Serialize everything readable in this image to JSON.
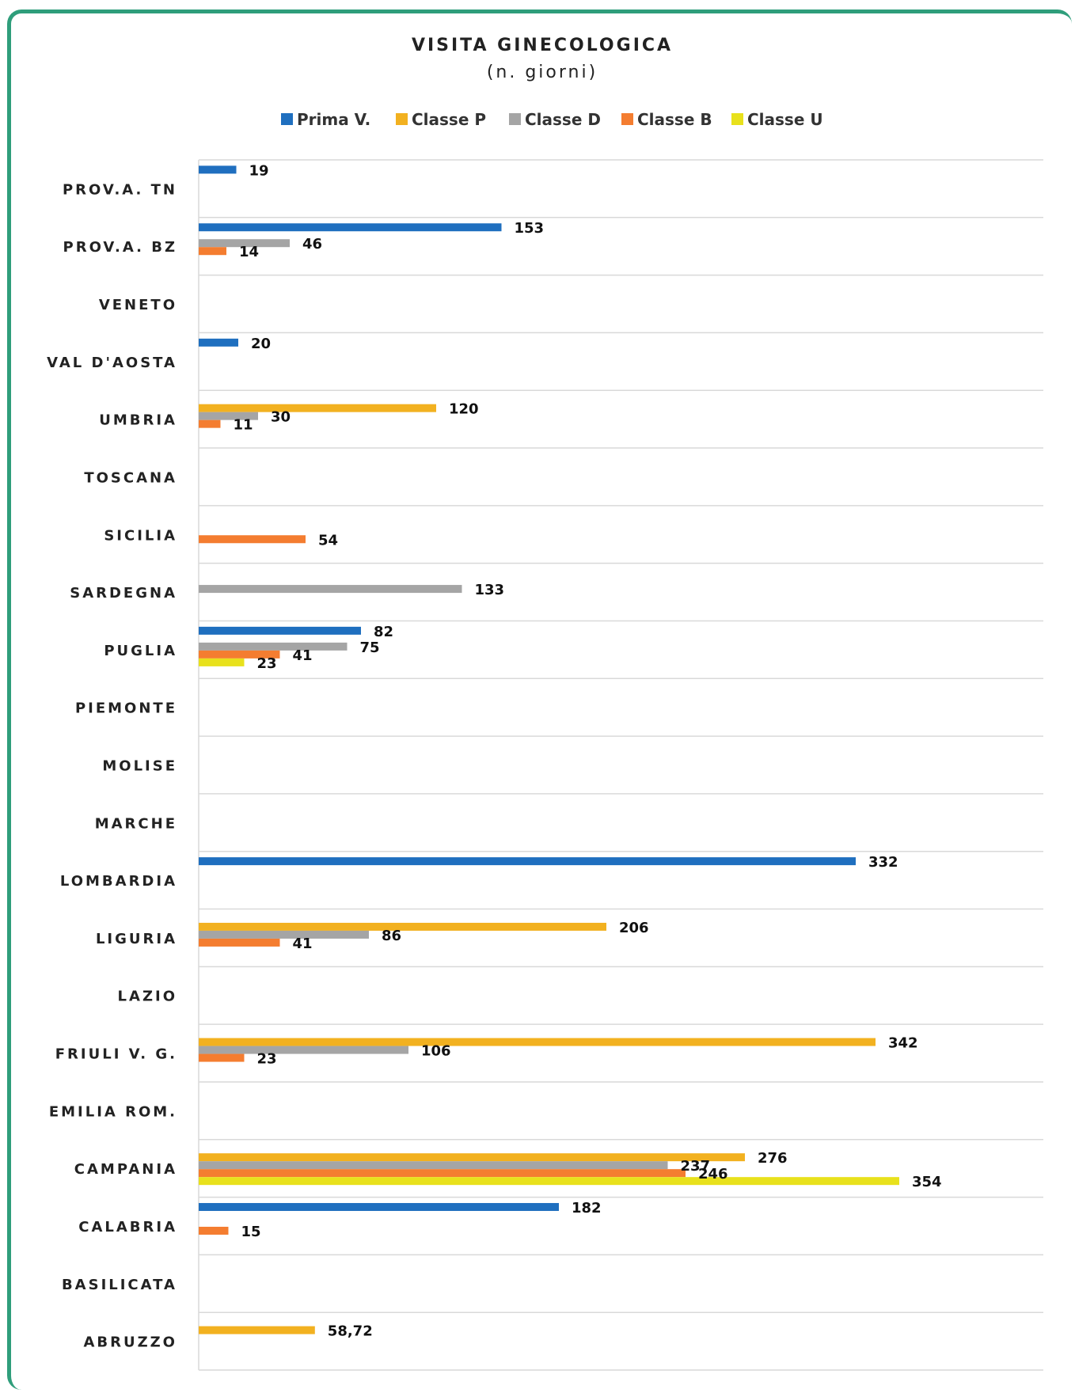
{
  "chart_data": {
    "type": "bar",
    "orientation": "horizontal",
    "title": "VISITA GINECOLOGICA",
    "subtitle": "(n. giorni)",
    "legend_position": "top",
    "categories": [
      "PROV.A. TN",
      "PROV.A. BZ",
      "VENETO",
      "VAL D'AOSTA",
      "UMBRIA",
      "TOSCANA",
      "SICILIA",
      "SARDEGNA",
      "PUGLIA",
      "PIEMONTE",
      "MOLISE",
      "MARCHE",
      "LOMBARDIA",
      "LIGURIA",
      "LAZIO",
      "FRIULI V. G.",
      "EMILIA ROM.",
      "CAMPANIA",
      "CALABRIA",
      "BASILICATA",
      "ABRUZZO"
    ],
    "series": [
      {
        "name": "Prima V.",
        "color": "#1f6fbf",
        "values": [
          19,
          153,
          null,
          20,
          null,
          null,
          null,
          null,
          82,
          null,
          null,
          null,
          332,
          null,
          null,
          null,
          null,
          null,
          182,
          null,
          null
        ],
        "labels": [
          "19",
          "153",
          "",
          "20",
          "",
          "",
          "",
          "",
          "82",
          "",
          "",
          "",
          "332",
          "",
          "",
          "",
          "",
          "",
          "182",
          "",
          ""
        ]
      },
      {
        "name": "Classe P",
        "color": "#f2b120",
        "values": [
          null,
          null,
          null,
          null,
          120,
          null,
          null,
          null,
          null,
          null,
          null,
          null,
          null,
          206,
          null,
          342,
          null,
          276,
          null,
          null,
          58.72
        ],
        "labels": [
          "",
          "",
          "",
          "",
          "120",
          "",
          "",
          "",
          "",
          "",
          "",
          "",
          "",
          "206",
          "",
          "342",
          "",
          "276",
          "",
          "",
          "58,72"
        ]
      },
      {
        "name": "Classe D",
        "color": "#a5a5a5",
        "values": [
          null,
          46,
          null,
          null,
          30,
          null,
          null,
          133,
          75,
          null,
          null,
          null,
          null,
          86,
          null,
          106,
          null,
          237,
          null,
          null,
          null
        ],
        "labels": [
          "",
          "46",
          "",
          "",
          "30",
          "",
          "",
          "133",
          "75",
          "",
          "",
          "",
          "",
          "86",
          "",
          "106",
          "",
          "237",
          "",
          "",
          ""
        ]
      },
      {
        "name": "Classe B",
        "color": "#f47d30",
        "values": [
          null,
          14,
          null,
          null,
          11,
          null,
          54,
          null,
          41,
          null,
          null,
          null,
          null,
          41,
          null,
          23,
          null,
          246,
          15,
          null,
          null
        ],
        "labels": [
          "",
          "14",
          "",
          "",
          "11",
          "",
          "54",
          "",
          "41",
          "",
          "",
          "",
          "",
          "41",
          "",
          "23",
          "",
          "246",
          "15",
          "",
          ""
        ]
      },
      {
        "name": "Classe U",
        "color": "#e8e11c",
        "values": [
          null,
          null,
          null,
          null,
          null,
          null,
          null,
          null,
          23,
          null,
          null,
          null,
          null,
          null,
          null,
          null,
          null,
          354,
          null,
          null,
          null
        ],
        "labels": [
          "",
          "",
          "",
          "",
          "",
          "",
          "",
          "",
          "23",
          "",
          "",
          "",
          "",
          "",
          "",
          "",
          "",
          "354",
          "",
          "",
          ""
        ]
      }
    ],
    "xlim": [
      0,
      400
    ],
    "grid": true
  }
}
